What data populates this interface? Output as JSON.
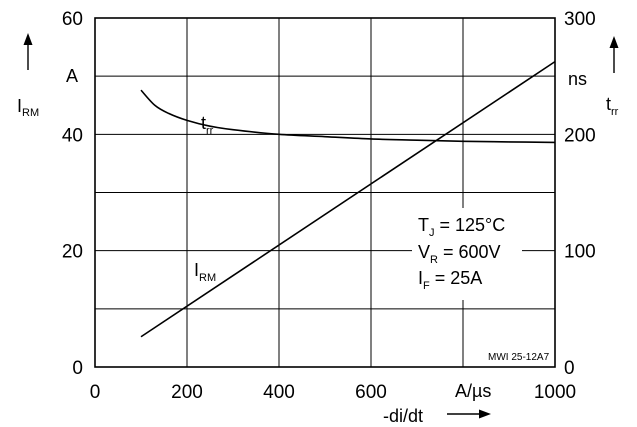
{
  "chart_data": {
    "type": "line",
    "x_axis": {
      "range": [
        0,
        1000
      ],
      "ticks": [
        "0",
        "200",
        "400",
        "600",
        "1000"
      ],
      "unit": "A/µs",
      "label": "-di/dt"
    },
    "y_left": {
      "range": [
        0,
        60
      ],
      "ticks": [
        "0",
        "20",
        "40",
        "60"
      ],
      "unit": "A",
      "label_main": "I",
      "label_sub": "RM"
    },
    "y_right": {
      "range": [
        0,
        300
      ],
      "ticks": [
        "0",
        "100",
        "200",
        "300"
      ],
      "unit": "ns",
      "label_main": "t",
      "label_sub": "rr"
    },
    "grid": true,
    "series": [
      {
        "name_main": "I",
        "name_sub": "RM",
        "axis": "left",
        "x": [
          100,
          1000
        ],
        "y": [
          5.2,
          52.5
        ]
      },
      {
        "name_main": "t",
        "name_sub": "rr",
        "axis": "right",
        "x": [
          100,
          130,
          160,
          200,
          250,
          300,
          400,
          500,
          600,
          700,
          800,
          900,
          1000
        ],
        "y": [
          238,
          225,
          218,
          212,
          207,
          204,
          200,
          198,
          196,
          195,
          194,
          193.5,
          193
        ]
      }
    ],
    "conditions": [
      {
        "main": "T",
        "sub": "J",
        "value": " = 125°C"
      },
      {
        "main": "V",
        "sub": "R",
        "value": " = 600V"
      },
      {
        "main": "I",
        "sub": "F",
        "value": " =  25A"
      }
    ],
    "code": "MWI 25-12A7"
  }
}
